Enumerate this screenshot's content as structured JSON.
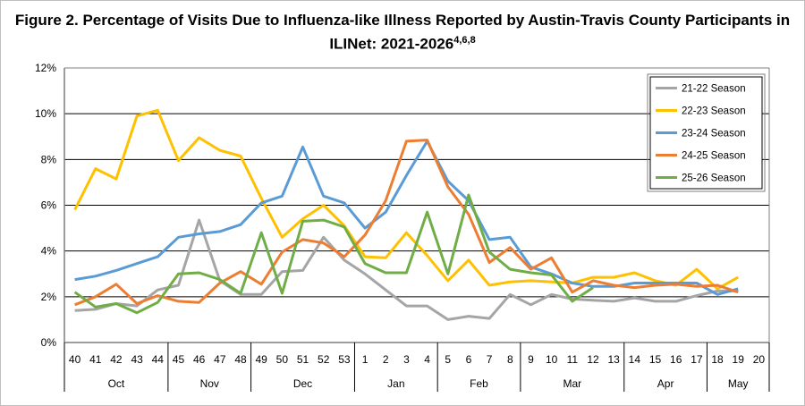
{
  "chart_data": {
    "type": "line",
    "title": "Figure 2. Percentage of Visits Due to Influenza-like Illness Reported by Austin-Travis County Participants in ILINet: 2021-2026",
    "title_superscript": "4,6,8",
    "xlabel": "",
    "ylabel": "",
    "ylim": [
      0,
      12
    ],
    "y_ticks": [
      "0%",
      "2%",
      "4%",
      "6%",
      "8%",
      "10%",
      "12%"
    ],
    "grid": true,
    "legend_position": "top-right",
    "categories": [
      "40",
      "41",
      "42",
      "43",
      "44",
      "45",
      "46",
      "47",
      "48",
      "49",
      "50",
      "51",
      "52",
      "53",
      "1",
      "2",
      "3",
      "4",
      "5",
      "6",
      "7",
      "8",
      "9",
      "10",
      "11",
      "12",
      "13",
      "14",
      "15",
      "16",
      "17",
      "18",
      "19",
      "20"
    ],
    "month_groups": [
      {
        "label": "Oct",
        "weeks": 5
      },
      {
        "label": "Nov",
        "weeks": 4
      },
      {
        "label": "Dec",
        "weeks": 5
      },
      {
        "label": "Jan",
        "weeks": 4
      },
      {
        "label": "Feb",
        "weeks": 4
      },
      {
        "label": "Mar",
        "weeks": 5
      },
      {
        "label": "Apr",
        "weeks": 4
      },
      {
        "label": "May",
        "weeks": 3
      }
    ],
    "series": [
      {
        "name": "21-22 Season",
        "color": "#A5A5A5",
        "values": [
          1.4,
          1.45,
          1.7,
          1.6,
          2.3,
          2.5,
          5.35,
          2.7,
          2.1,
          2.1,
          3.1,
          3.15,
          4.6,
          3.6,
          3.0,
          2.3,
          1.6,
          1.6,
          1.0,
          1.15,
          1.05,
          2.1,
          1.65,
          2.1,
          1.9,
          1.85,
          1.8,
          1.95,
          1.8,
          1.8,
          2.05,
          2.25,
          2.25,
          null
        ]
      },
      {
        "name": "22-23 Season",
        "color": "#FFC000",
        "values": [
          5.8,
          7.6,
          7.15,
          9.9,
          10.15,
          7.95,
          8.95,
          8.4,
          8.15,
          6.3,
          4.6,
          5.4,
          6.0,
          5.1,
          3.75,
          3.7,
          4.8,
          3.8,
          2.7,
          3.6,
          2.5,
          2.65,
          2.7,
          2.65,
          2.6,
          2.85,
          2.85,
          3.05,
          2.7,
          2.5,
          3.2,
          2.35,
          2.85,
          null
        ]
      },
      {
        "name": "23-24 Season",
        "color": "#5B9BD5",
        "values": [
          2.75,
          2.9,
          3.15,
          3.45,
          3.75,
          4.6,
          4.75,
          4.85,
          5.15,
          6.1,
          6.4,
          8.55,
          6.4,
          6.1,
          5.0,
          5.7,
          7.3,
          8.8,
          7.05,
          6.2,
          4.5,
          4.6,
          3.3,
          3.0,
          2.6,
          2.45,
          2.45,
          2.6,
          2.6,
          2.6,
          2.6,
          2.1,
          2.35,
          null
        ]
      },
      {
        "name": "24-25 Season",
        "color": "#ED7D31",
        "values": [
          1.65,
          2.0,
          2.55,
          1.7,
          2.05,
          1.8,
          1.75,
          2.6,
          3.1,
          2.55,
          3.95,
          4.5,
          4.35,
          3.75,
          4.7,
          6.2,
          8.8,
          8.85,
          6.8,
          5.6,
          3.5,
          4.15,
          3.2,
          3.7,
          2.2,
          2.7,
          2.5,
          2.4,
          2.5,
          2.55,
          2.45,
          2.5,
          2.2,
          null
        ]
      },
      {
        "name": "25-26 Season",
        "color": "#70AD47",
        "values": [
          2.2,
          1.55,
          1.7,
          1.3,
          1.75,
          3.0,
          3.05,
          2.75,
          2.15,
          4.8,
          2.15,
          5.3,
          5.35,
          5.05,
          3.45,
          3.05,
          3.05,
          5.7,
          3.0,
          6.45,
          3.95,
          3.2,
          3.05,
          2.95,
          1.8,
          2.4,
          null,
          null,
          null,
          null,
          null,
          null,
          null,
          null
        ]
      }
    ]
  }
}
